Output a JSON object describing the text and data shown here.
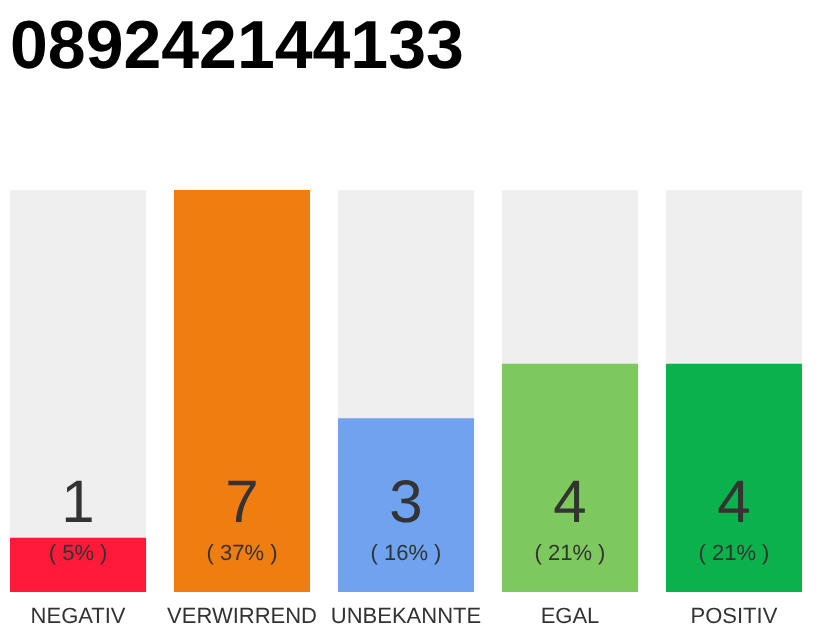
{
  "chart_data": {
    "type": "bar",
    "title": "089242144133",
    "categories": [
      "NEGATIV",
      "VERWIRREND",
      "UNBEKANNTE",
      "EGAL",
      "POSITIV"
    ],
    "values": [
      5,
      37,
      16,
      21,
      21
    ],
    "colors": [
      "#ff1a3a",
      "#f07d0f",
      "#6fa3ef",
      "#7ec95e",
      "#0bb14a"
    ],
    "value_labels": [
      "( 5% )",
      "( 37% )",
      "( 16% )",
      "( 21% )",
      "( 21% )"
    ],
    "annotations": [
      "1",
      "7",
      "3",
      "4",
      "4"
    ]
  }
}
